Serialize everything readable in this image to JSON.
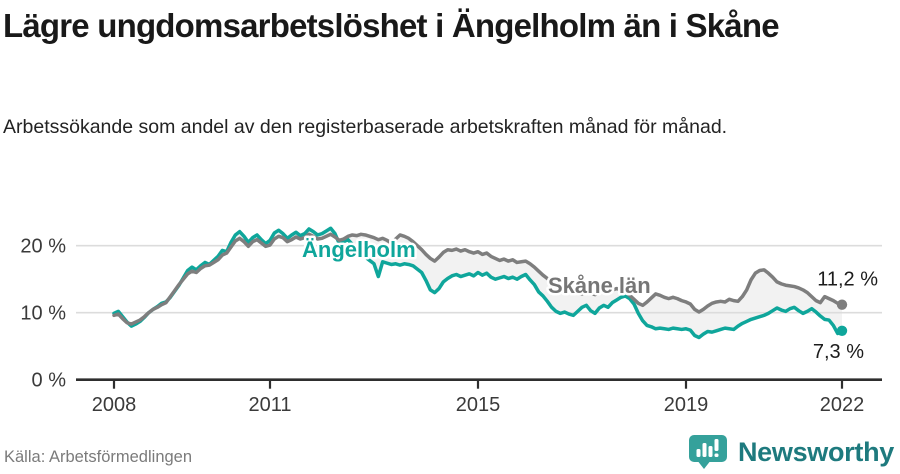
{
  "header": {
    "title": "Lägre ungdomsarbetslöshet i Ängelholm än i Skåne",
    "subtitle": "Arbetssökande som andel av den registerbaserade arbetskraften månad för månad."
  },
  "chart_data": {
    "type": "line",
    "title": "Lägre ungdomsarbetslöshet i Ängelholm än i Skåne",
    "subtitle": "Arbetssökande som andel av den registerbaserade arbetskraften månad för månad.",
    "x_unit": "month",
    "x_range": [
      "2008-01",
      "2022-01"
    ],
    "x_tick_years": [
      2008,
      2011,
      2015,
      2019,
      2022
    ],
    "x_tick_labels": [
      "2008",
      "2011",
      "2015",
      "2019",
      "2022"
    ],
    "y_ticks": [
      0,
      10,
      20
    ],
    "y_tick_labels": [
      "0 %",
      "10 %",
      "20 %"
    ],
    "ylim": [
      0,
      24
    ],
    "grid": "horizontal",
    "legend_position": "inline-labels",
    "fill_between_series": true,
    "series": [
      {
        "name": "Ängelholm",
        "color": "#0fa69b",
        "end_value": 7.3,
        "end_label": "7,3 %",
        "end_label_position": "below",
        "values": [
          9.9,
          10.2,
          9.4,
          8.6,
          8.0,
          8.3,
          8.7,
          9.3,
          10.0,
          10.5,
          10.9,
          11.4,
          11.6,
          12.3,
          13.2,
          14.1,
          15.2,
          16.3,
          16.8,
          16.4,
          17.0,
          17.5,
          17.2,
          17.8,
          18.4,
          19.3,
          19.1,
          20.5,
          21.6,
          22.1,
          21.4,
          20.5,
          21.2,
          21.6,
          20.9,
          20.3,
          20.8,
          21.9,
          22.3,
          21.8,
          21.1,
          21.6,
          22.0,
          21.5,
          21.8,
          22.5,
          22.1,
          21.6,
          21.8,
          22.2,
          22.6,
          21.8,
          20.3,
          20.6,
          20.9,
          20.2,
          19.6,
          18.9,
          18.3,
          17.8,
          17.3,
          15.4,
          17.6,
          17.4,
          17.2,
          17.3,
          17.1,
          17.3,
          17.2,
          17.0,
          16.5,
          16.0,
          14.8,
          13.4,
          13.0,
          13.6,
          14.6,
          15.1,
          15.5,
          15.7,
          15.4,
          15.6,
          15.8,
          15.5,
          16.0,
          15.6,
          15.9,
          15.3,
          15.0,
          15.2,
          15.4,
          15.1,
          15.3,
          15.0,
          15.4,
          15.7,
          14.9,
          14.2,
          13.1,
          12.5,
          11.7,
          10.8,
          10.2,
          9.9,
          10.1,
          9.8,
          9.6,
          10.2,
          10.8,
          11.1,
          10.3,
          9.9,
          10.7,
          11.1,
          10.8,
          11.5,
          11.9,
          12.3,
          12.5,
          12.1,
          11.3,
          9.9,
          8.8,
          8.1,
          7.9,
          7.6,
          7.7,
          7.6,
          7.5,
          7.7,
          7.6,
          7.5,
          7.6,
          7.4,
          6.6,
          6.3,
          6.8,
          7.2,
          7.1,
          7.3,
          7.5,
          7.7,
          7.6,
          7.5,
          8.0,
          8.4,
          8.7,
          9.0,
          9.2,
          9.4,
          9.6,
          9.9,
          10.3,
          10.7,
          10.4,
          10.2,
          10.6,
          10.8,
          10.3,
          9.9,
          10.2,
          10.6,
          10.1,
          9.5,
          9.0,
          8.9,
          8.1,
          6.9,
          7.3
        ]
      },
      {
        "name": "Skåne län",
        "color": "#7e7e7e",
        "end_value": 11.2,
        "end_label": "11,2 %",
        "end_label_position": "above",
        "values": [
          9.6,
          9.8,
          9.1,
          8.5,
          8.3,
          8.6,
          8.9,
          9.4,
          10.0,
          10.5,
          10.8,
          11.2,
          11.5,
          12.4,
          13.3,
          14.2,
          15.0,
          15.8,
          16.2,
          16.0,
          16.6,
          17.0,
          17.1,
          17.5,
          17.9,
          18.6,
          18.9,
          19.8,
          20.7,
          21.1,
          20.6,
          19.9,
          20.6,
          20.9,
          20.4,
          19.9,
          20.1,
          21.0,
          21.4,
          21.2,
          20.6,
          20.9,
          21.3,
          21.0,
          21.2,
          21.7,
          21.4,
          21.0,
          21.1,
          21.4,
          21.7,
          21.3,
          20.8,
          21.0,
          21.4,
          21.6,
          21.5,
          21.7,
          21.6,
          21.4,
          21.2,
          20.9,
          21.1,
          20.8,
          20.4,
          21.0,
          21.6,
          21.4,
          21.1,
          20.6,
          20.0,
          19.4,
          18.7,
          18.1,
          17.7,
          18.3,
          19.0,
          19.4,
          19.3,
          19.5,
          19.2,
          19.4,
          19.1,
          18.9,
          19.1,
          18.7,
          18.9,
          18.4,
          18.1,
          17.8,
          18.0,
          17.7,
          17.9,
          17.5,
          17.6,
          17.7,
          17.3,
          16.8,
          16.2,
          15.6,
          15.1,
          14.6,
          14.1,
          13.8,
          13.5,
          13.3,
          13.0,
          12.9,
          12.8,
          13.1,
          12.9,
          12.7,
          13.0,
          13.3,
          13.1,
          13.4,
          13.6,
          13.4,
          13.1,
          12.6,
          12.0,
          11.4,
          11.1,
          11.6,
          12.2,
          12.8,
          12.6,
          12.3,
          12.1,
          12.3,
          12.1,
          11.8,
          11.6,
          11.3,
          10.5,
          10.1,
          10.5,
          11.0,
          11.4,
          11.6,
          11.7,
          11.6,
          12.0,
          11.8,
          11.7,
          12.4,
          13.4,
          14.9,
          15.9,
          16.3,
          16.4,
          15.9,
          15.3,
          14.6,
          14.3,
          14.1,
          14.0,
          13.9,
          13.7,
          13.4,
          13.0,
          12.4,
          11.8,
          11.5,
          12.4,
          12.1,
          11.8,
          11.4,
          11.2
        ]
      }
    ],
    "colors": {
      "grid": "#dcdcdc",
      "axis": "#2e2e2e",
      "fill_between": "rgba(0,0,0,0.05)",
      "tick_text": "#3a3a3a"
    }
  },
  "footer": {
    "source": "Källa: Arbetsförmedlingen",
    "brand": "Newsworthy"
  }
}
